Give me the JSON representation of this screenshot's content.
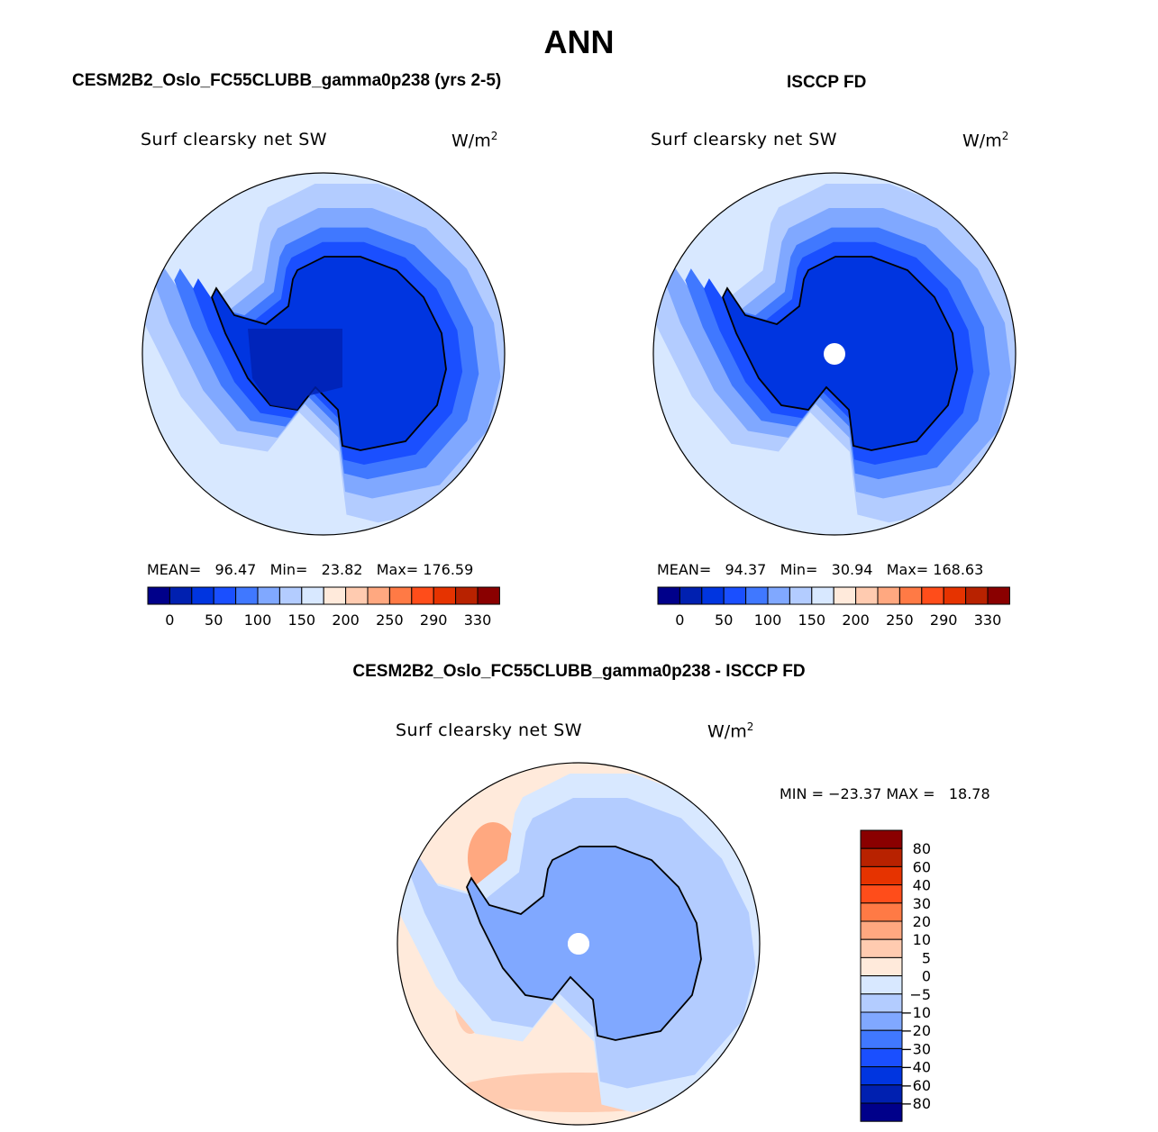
{
  "title": "ANN",
  "colors": [
    "#00008a",
    "#0020b0",
    "#0035e0",
    "#1a4fff",
    "#4078ff",
    "#80a8ff",
    "#b3ccff",
    "#d8e8ff",
    "#ffeadb",
    "#ffcbb0",
    "#ffa880",
    "#ff7a45",
    "#ff4d1a",
    "#e63300",
    "#b82200",
    "#8a0000"
  ],
  "panels": [
    {
      "case": "CESM2B2_Oslo_FC55CLUBB_gamma0p238 (yrs 2-5)",
      "variable": "Surf clearsky net SW",
      "units": "W/m",
      "units_exp": "2",
      "stats": {
        "mean_label": "MEAN=",
        "mean": "96.47",
        "min_label": "Min=",
        "min": "23.82",
        "max_label": "Max=",
        "max": "176.59"
      },
      "colorbar_labels": [
        "0",
        "50",
        "100",
        "150",
        "200",
        "250",
        "290",
        "330"
      ]
    },
    {
      "case": "ISCCP FD",
      "variable": "Surf clearsky net SW",
      "units": "W/m",
      "units_exp": "2",
      "stats": {
        "mean_label": "MEAN=",
        "mean": "94.37",
        "min_label": "Min=",
        "min": "30.94",
        "max_label": "Max=",
        "max": "168.63"
      },
      "colorbar_labels": [
        "0",
        "50",
        "100",
        "150",
        "200",
        "250",
        "290",
        "330"
      ]
    }
  ],
  "diff": {
    "case": "CESM2B2_Oslo_FC55CLUBB_gamma0p238 - ISCCP FD",
    "variable": "Surf clearsky net SW",
    "units": "W/m",
    "units_exp": "2",
    "stats_text": "MIN = −23.37 MAX =   18.78",
    "colorbar_labels": [
      "80",
      "60",
      "40",
      "30",
      "20",
      "10",
      "5",
      "0",
      "−5",
      "−10",
      "−20",
      "−30",
      "−40",
      "−60",
      "−80"
    ]
  }
}
